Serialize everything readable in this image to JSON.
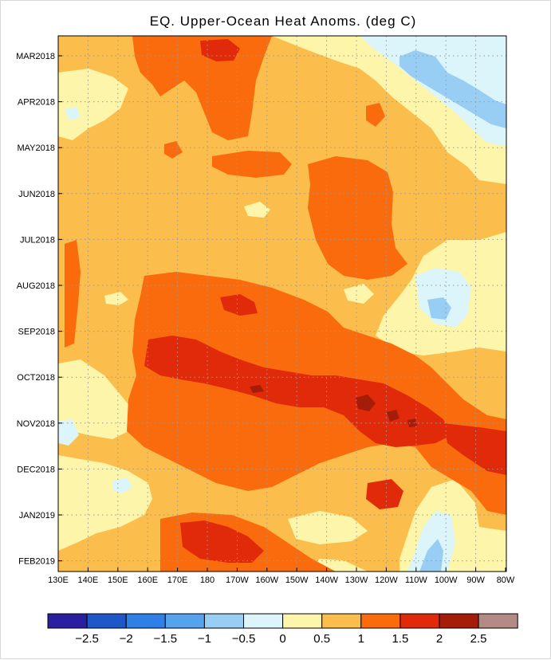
{
  "chart_data": {
    "type": "heatmap",
    "title": "EQ. Upper-Ocean Heat Anoms. (deg C)",
    "xlabel": "",
    "ylabel": "",
    "x_tick_labels": [
      "130E",
      "140E",
      "150E",
      "160E",
      "170E",
      "180",
      "170W",
      "160W",
      "150W",
      "140W",
      "130W",
      "120W",
      "110W",
      "100W",
      "90W",
      "80W"
    ],
    "y_tick_labels": [
      "MAR2018",
      "APR2018",
      "MAY2018",
      "JUN2018",
      "JUL2018",
      "AUG2018",
      "SEP2018",
      "OCT2018",
      "NOV2018",
      "DEC2018",
      "JAN2019",
      "FEB2019"
    ],
    "grid": true,
    "contour_levels": [
      -2.5,
      -2,
      -1.5,
      -1,
      -0.5,
      0,
      0.5,
      1,
      1.5,
      2,
      2.5
    ],
    "colorbar_labels": [
      "-2.5",
      "-2",
      "-1.5",
      "-1",
      "-0.5",
      "0",
      "0.5",
      "1",
      "1.5",
      "2",
      "2.5"
    ],
    "colorbar_colors": [
      "#2a1fa0",
      "#1f56c8",
      "#2f7fe6",
      "#55a3ee",
      "#98cdf4",
      "#dbf5fa",
      "#fdf5a9",
      "#fbbd4b",
      "#fa6b0d",
      "#e02a0a",
      "#a51c08",
      "#b48a84"
    ],
    "sample_grid": {
      "longitudes": [
        "130E",
        "140E",
        "150E",
        "160E",
        "170E",
        "180",
        "170W",
        "160W",
        "150W",
        "140W",
        "130W",
        "120W",
        "110W",
        "100W",
        "90W",
        "80W"
      ],
      "rows": [
        {
          "time": "MAR2018",
          "values": [
            0.7,
            0.8,
            1.0,
            1.2,
            1.6,
            1.6,
            1.2,
            1.0,
            0.9,
            0.8,
            0.6,
            0.4,
            0.2,
            0.0,
            -0.3,
            -0.3
          ]
        },
        {
          "time": "APR2018",
          "values": [
            0.4,
            0.6,
            0.8,
            1.0,
            1.4,
            1.6,
            1.2,
            0.9,
            0.8,
            0.7,
            1.2,
            0.6,
            0.2,
            -0.2,
            -0.6,
            -0.8
          ]
        },
        {
          "time": "MAY2018",
          "values": [
            0.7,
            0.7,
            0.9,
            1.0,
            1.4,
            1.4,
            1.6,
            1.0,
            1.0,
            1.0,
            0.8,
            0.6,
            0.3,
            0.1,
            -0.2,
            -0.2
          ]
        },
        {
          "time": "JUN2018",
          "values": [
            0.8,
            0.8,
            0.9,
            1.0,
            1.2,
            1.1,
            1.1,
            1.0,
            0.9,
            1.5,
            1.4,
            0.9,
            0.7,
            0.5,
            0.3,
            0.2
          ]
        },
        {
          "time": "JUL2018",
          "values": [
            1.2,
            1.0,
            0.9,
            1.0,
            1.1,
            1.2,
            1.2,
            1.2,
            1.2,
            1.5,
            1.5,
            1.1,
            0.7,
            0.3,
            0.1,
            0.0
          ]
        },
        {
          "time": "AUG2018",
          "values": [
            1.3,
            1.0,
            1.0,
            1.5,
            1.6,
            1.7,
            1.6,
            1.5,
            1.2,
            1.1,
            1.0,
            0.8,
            0.6,
            -0.2,
            0.0,
            0.3
          ]
        },
        {
          "time": "SEP2018",
          "values": [
            1.1,
            1.0,
            1.0,
            1.6,
            1.7,
            1.8,
            1.6,
            1.6,
            1.6,
            1.5,
            1.4,
            1.2,
            0.8,
            0.3,
            0.2,
            0.5
          ]
        },
        {
          "time": "OCT2018",
          "values": [
            0.8,
            0.9,
            1.0,
            1.8,
            2.2,
            2.3,
            2.2,
            2.2,
            2.1,
            2.0,
            2.0,
            1.9,
            1.6,
            1.2,
            1.1,
            1.0
          ]
        },
        {
          "time": "NOV2018",
          "values": [
            0.3,
            0.6,
            1.0,
            1.6,
            1.9,
            1.9,
            1.9,
            1.8,
            1.9,
            2.0,
            2.1,
            2.4,
            2.1,
            2.0,
            1.8,
            1.7
          ]
        },
        {
          "time": "DEC2018",
          "values": [
            0.5,
            0.7,
            0.8,
            1.1,
            1.6,
            1.6,
            1.6,
            1.4,
            1.3,
            1.4,
            1.5,
            1.5,
            1.2,
            0.9,
            1.6,
            1.6
          ]
        },
        {
          "time": "JAN2019",
          "values": [
            0.5,
            0.7,
            0.4,
            0.8,
            0.9,
            1.0,
            1.0,
            0.8,
            0.6,
            0.5,
            1.1,
            1.8,
            0.8,
            0.3,
            1.5,
            1.6
          ]
        },
        {
          "time": "FEB2019",
          "values": [
            0.4,
            0.6,
            0.8,
            0.9,
            1.6,
            2.1,
            1.9,
            1.6,
            1.2,
            1.0,
            0.6,
            0.3,
            0.2,
            0.6,
            0.4,
            1.2
          ]
        }
      ]
    }
  }
}
